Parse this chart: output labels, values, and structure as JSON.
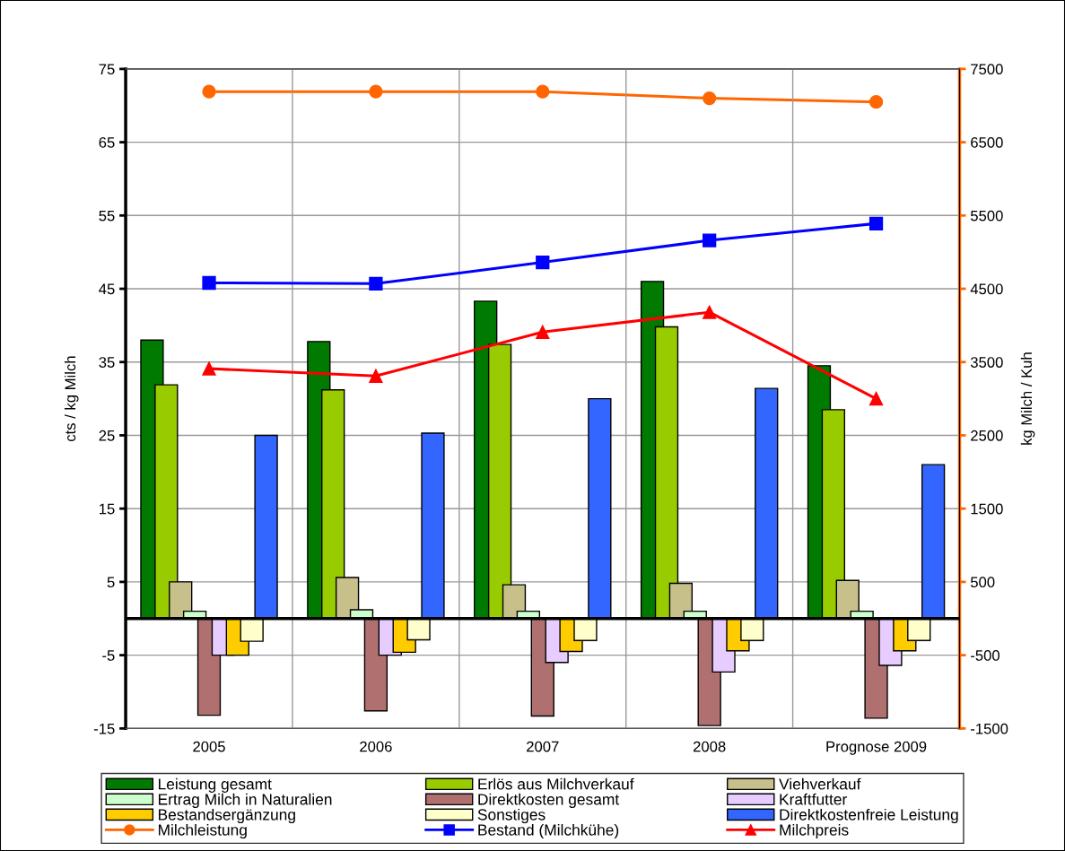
{
  "chart_data": {
    "type": "bar",
    "ylabel": "cts / kg Milch",
    "y2label": "kg Milch / Kuh",
    "categories": [
      "2005",
      "2006",
      "2007",
      "2008",
      "Prognose 2009"
    ],
    "ylim": [
      -15,
      75
    ],
    "yticks": [
      -15,
      -5,
      5,
      15,
      25,
      35,
      45,
      55,
      65,
      75
    ],
    "y2lim": [
      -1500,
      7500
    ],
    "y2ticks": [
      -1500,
      -500,
      500,
      1500,
      2500,
      3500,
      4500,
      5500,
      6500,
      7500
    ],
    "grid": true,
    "legend": "bottom",
    "series": [
      {
        "name": "Leistung gesamt",
        "color": "#007a00",
        "values": [
          38.0,
          37.8,
          43.3,
          46.0,
          34.5
        ]
      },
      {
        "name": "Erlös aus Milchverkauf",
        "color": "#99cc00",
        "values": [
          31.9,
          31.2,
          37.4,
          39.8,
          28.5
        ]
      },
      {
        "name": "Viehverkauf",
        "color": "#c8c08a",
        "values": [
          5.0,
          5.6,
          4.6,
          4.8,
          5.2
        ]
      },
      {
        "name": "Ertrag Milch in Naturalien",
        "color": "#ccffcc",
        "values": [
          1.0,
          1.2,
          1.0,
          1.0,
          1.0
        ]
      },
      {
        "name": "Direktkosten gesamt",
        "color": "#b07070",
        "values": [
          -13.2,
          -12.6,
          -13.3,
          -14.6,
          -13.6
        ]
      },
      {
        "name": "Kraftfutter",
        "color": "#e6ccff",
        "values": [
          -5.0,
          -5.0,
          -6.0,
          -7.3,
          -6.4
        ]
      },
      {
        "name": "Bestandsergänzung",
        "color": "#ffcc00",
        "values": [
          -5.0,
          -4.6,
          -4.5,
          -4.4,
          -4.4
        ]
      },
      {
        "name": "Sonstiges",
        "color": "#ffffcc",
        "values": [
          -3.1,
          -2.9,
          -3.0,
          -3.0,
          -3.0
        ]
      },
      {
        "name": "Direktkostenfreie Leistung",
        "color": "#3366ff",
        "values": [
          25.0,
          25.3,
          30.0,
          31.4,
          21.0
        ]
      },
      {
        "name": "Milchleistung",
        "type": "line",
        "axis": "y2",
        "marker": "circle",
        "color": "#ff6600",
        "values": [
          7190,
          7190,
          7190,
          7100,
          7050
        ]
      },
      {
        "name": "Bestand (Milchkühe)",
        "type": "line",
        "marker": "square",
        "color": "#0000ff",
        "values": [
          45.8,
          45.7,
          48.6,
          51.6,
          53.9
        ]
      },
      {
        "name": "Milchpreis",
        "type": "line",
        "marker": "triangle",
        "color": "#ff0000",
        "values": [
          34.1,
          33.1,
          39.1,
          41.8,
          30.0
        ]
      }
    ]
  }
}
